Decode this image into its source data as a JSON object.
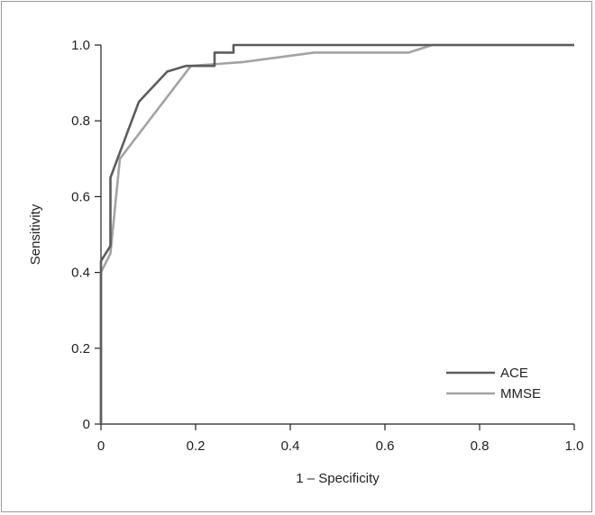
{
  "chart_data": {
    "type": "line",
    "title": "",
    "xlabel": "1 – Specificity",
    "ylabel": "Sensitivity",
    "xlim": [
      0,
      1.0
    ],
    "ylim": [
      0,
      1.0
    ],
    "xticks": [
      "0",
      "0.2",
      "0.4",
      "0.6",
      "0.8",
      "1.0"
    ],
    "yticks": [
      "0",
      "0.2",
      "0.4",
      "0.6",
      "0.8",
      "1.0"
    ],
    "xtick_values": [
      0,
      0.2,
      0.4,
      0.6,
      0.8,
      1.0
    ],
    "ytick_values": [
      0,
      0.2,
      0.4,
      0.6,
      0.8,
      1.0
    ],
    "grid": false,
    "legend_position": "bottom-right",
    "series": [
      {
        "name": "ACE",
        "color": "#5c5c5c",
        "x": [
          0,
          0,
          0.02,
          0.02,
          0.08,
          0.14,
          0.18,
          0.24,
          0.24,
          0.28,
          0.28,
          1.0
        ],
        "y": [
          0,
          0.43,
          0.47,
          0.65,
          0.85,
          0.93,
          0.945,
          0.945,
          0.98,
          0.98,
          1.0,
          1.0
        ]
      },
      {
        "name": "MMSE",
        "color": "#a3a3a3",
        "x": [
          0,
          0,
          0.02,
          0.04,
          0.19,
          0.3,
          0.45,
          0.65,
          0.7,
          1.0
        ],
        "y": [
          0,
          0.4,
          0.45,
          0.7,
          0.945,
          0.955,
          0.98,
          0.98,
          1.0,
          1.0
        ]
      }
    ]
  }
}
